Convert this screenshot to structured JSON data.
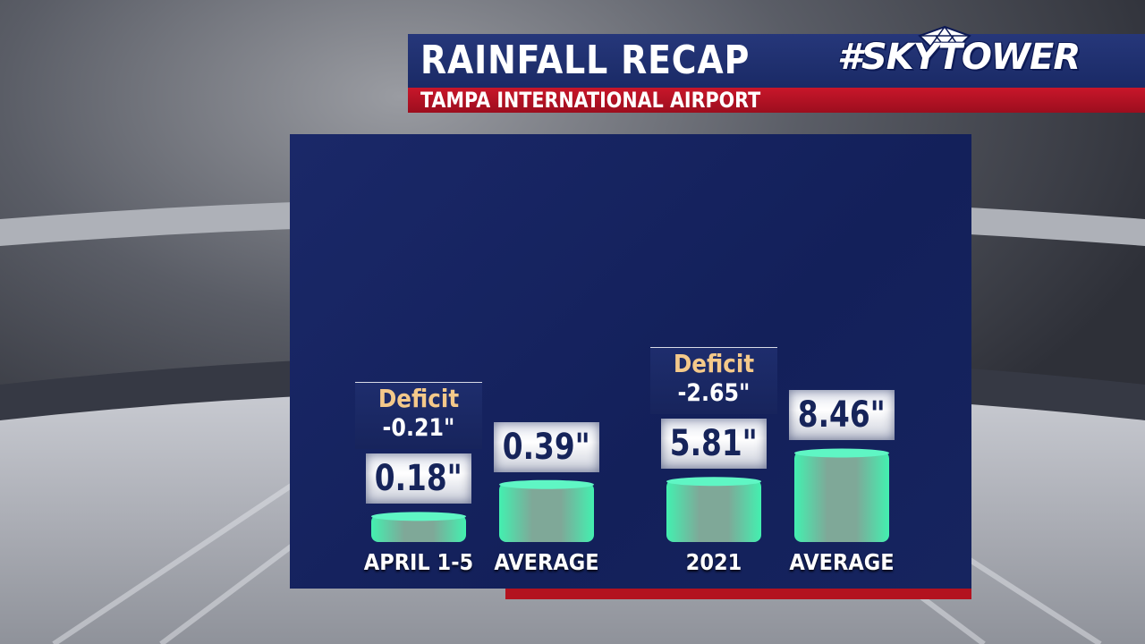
{
  "header": {
    "title": "RAINFALL RECAP",
    "subtitle": "TAMPA INTERNATIONAL AIRPORT",
    "logo_text": "#SKYTOWER"
  },
  "colors": {
    "panel": "#16245f",
    "bar": "#4ef0b4",
    "accent_red": "#b3121f",
    "deficit_label": "#f4c98a"
  },
  "chart_data": {
    "type": "bar",
    "title": "RAINFALL RECAP",
    "subtitle": "TAMPA INTERNATIONAL AIRPORT",
    "unit": "\"",
    "categories": [
      "APRIL 1-5",
      "AVERAGE",
      "2021",
      "AVERAGE"
    ],
    "values": [
      0.18,
      0.39,
      5.81,
      8.46
    ],
    "value_labels": [
      "0.18\"",
      "0.39\"",
      "5.81\"",
      "8.46\""
    ],
    "annotations": [
      {
        "label": "Deficit",
        "value": "-0.21\""
      },
      null,
      {
        "label": "Deficit",
        "value": "-2.65\""
      },
      null
    ],
    "groups": [
      [
        0,
        1
      ],
      [
        2,
        3
      ]
    ],
    "grid": false
  }
}
